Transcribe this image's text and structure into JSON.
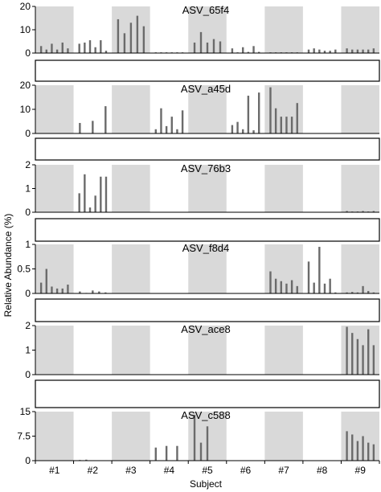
{
  "chart_data": {
    "type": "bar",
    "xlabel": "Subject",
    "ylabel": "Relative Abundance (%)",
    "subjects": [
      "#1",
      "#2",
      "#3",
      "#4",
      "#5",
      "#6",
      "#7",
      "#8",
      "#9"
    ],
    "shaded_subjects": [
      "#1",
      "#3",
      "#5",
      "#7",
      "#9"
    ],
    "colors": {
      "bar": "#6b6b6b",
      "shade": "#d9d9d9",
      "axis": "#000000"
    },
    "panels": [
      {
        "title": "ASV_65f4",
        "ylim": [
          0,
          20
        ],
        "yticks": [
          "0",
          "10",
          "20"
        ],
        "values": [
          [
            3,
            1.5,
            4,
            1.5,
            4.5,
            2
          ],
          [
            4,
            4.5,
            5.5,
            2.5,
            5.5,
            1
          ],
          [
            14.5,
            8.5,
            13,
            16,
            11.5
          ],
          [
            0.3,
            0.3,
            0.3,
            0.3,
            0.3,
            0.3
          ],
          [
            4.5,
            9,
            4.5,
            6,
            5
          ],
          [
            2,
            0.3,
            2.5,
            0.5,
            3,
            0.5
          ],
          [
            0.3,
            0.3,
            0.3,
            0.3,
            0.3,
            0.3
          ],
          [
            1.5,
            2,
            1.5,
            1,
            1,
            1.5
          ],
          [
            2,
            1.5,
            1.5,
            1.5,
            1.5,
            2
          ]
        ]
      },
      {
        "title": "ASV_a45d",
        "ylim": [
          0,
          23
        ],
        "yticks": [
          "0",
          "10",
          "20"
        ],
        "values": [
          [
            0,
            0,
            0,
            0,
            0,
            0
          ],
          [
            5,
            0,
            6,
            0,
            13
          ],
          [
            0,
            0,
            0,
            0,
            0
          ],
          [
            2,
            12,
            3.5,
            8,
            2,
            11
          ],
          [
            0,
            0,
            0,
            0,
            0
          ],
          [
            4,
            5.5,
            2,
            18,
            1.5,
            19.5
          ],
          [
            22,
            12,
            8,
            8,
            8,
            14.5
          ],
          [
            0,
            0,
            0,
            0,
            0,
            0
          ],
          [
            0,
            0,
            0,
            0,
            0,
            0
          ]
        ]
      },
      {
        "title": "ASV_76b3",
        "ylim": [
          0,
          2
        ],
        "yticks": [
          "0",
          "1",
          "2"
        ],
        "values": [
          [
            0,
            0,
            0,
            0,
            0,
            0
          ],
          [
            0.8,
            1.6,
            0.2,
            0.7,
            1.5,
            1.5
          ],
          [
            0,
            0,
            0,
            0,
            0
          ],
          [
            0,
            0,
            0,
            0,
            0,
            0
          ],
          [
            0,
            0,
            0,
            0,
            0
          ],
          [
            0,
            0,
            0,
            0,
            0,
            0
          ],
          [
            0,
            0,
            0,
            0,
            0,
            0
          ],
          [
            0,
            0,
            0,
            0,
            0,
            0
          ],
          [
            0.05,
            0.03,
            0.03,
            0.05,
            0.03,
            0.05
          ]
        ]
      },
      {
        "title": "ASV_f8d4",
        "ylim": [
          0,
          1
        ],
        "yticks": [
          "0",
          "0.5",
          "1"
        ],
        "values": [
          [
            0.22,
            0.5,
            0.14,
            0.1,
            0.1,
            0.18
          ],
          [
            0.04,
            0.01,
            0.06,
            0.04,
            0.02
          ],
          [
            0,
            0,
            0,
            0,
            0
          ],
          [
            0,
            0,
            0,
            0,
            0,
            0
          ],
          [
            0,
            0,
            0,
            0,
            0
          ],
          [
            0,
            0,
            0,
            0,
            0,
            0
          ],
          [
            0.45,
            0.3,
            0.25,
            0.2,
            0.27,
            0.15
          ],
          [
            0.65,
            0.22,
            0.95,
            0.2,
            0.3,
            0.02
          ],
          [
            0.02,
            0.03,
            0.02,
            0.15,
            0.05,
            0.02
          ]
        ]
      },
      {
        "title": "ASV_ace8",
        "ylim": [
          0,
          2
        ],
        "yticks": [
          "0",
          "1",
          "2"
        ],
        "values": [
          [
            0,
            0,
            0,
            0,
            0,
            0
          ],
          [
            0,
            0,
            0,
            0,
            0
          ],
          [
            0,
            0,
            0,
            0,
            0
          ],
          [
            0,
            0,
            0,
            0,
            0,
            0
          ],
          [
            0,
            0,
            0,
            0,
            0
          ],
          [
            0,
            0,
            0,
            0,
            0,
            0
          ],
          [
            0,
            0,
            0,
            0,
            0,
            0
          ],
          [
            0,
            0,
            0,
            0,
            0,
            0
          ],
          [
            1.95,
            1.7,
            1.45,
            1.2,
            1.85,
            1.2
          ]
        ]
      },
      {
        "title": "ASV_c588",
        "ylim": [
          0,
          15
        ],
        "yticks": [
          "0",
          "7.5",
          "15"
        ],
        "values": [
          [
            0,
            0,
            0,
            0,
            0,
            0
          ],
          [
            0.2,
            0.3,
            0.1,
            0,
            0
          ],
          [
            0,
            0,
            0,
            0,
            0
          ],
          [
            4,
            0,
            4.5,
            0,
            4.5,
            0
          ],
          [
            14,
            5.5,
            10.5,
            0,
            0
          ],
          [
            0,
            0,
            0,
            0,
            0,
            0
          ],
          [
            0,
            0,
            0,
            0,
            0,
            0
          ],
          [
            0,
            0,
            0,
            0,
            0,
            0
          ],
          [
            9,
            8,
            6,
            7.5,
            5.5,
            5
          ]
        ]
      }
    ]
  }
}
